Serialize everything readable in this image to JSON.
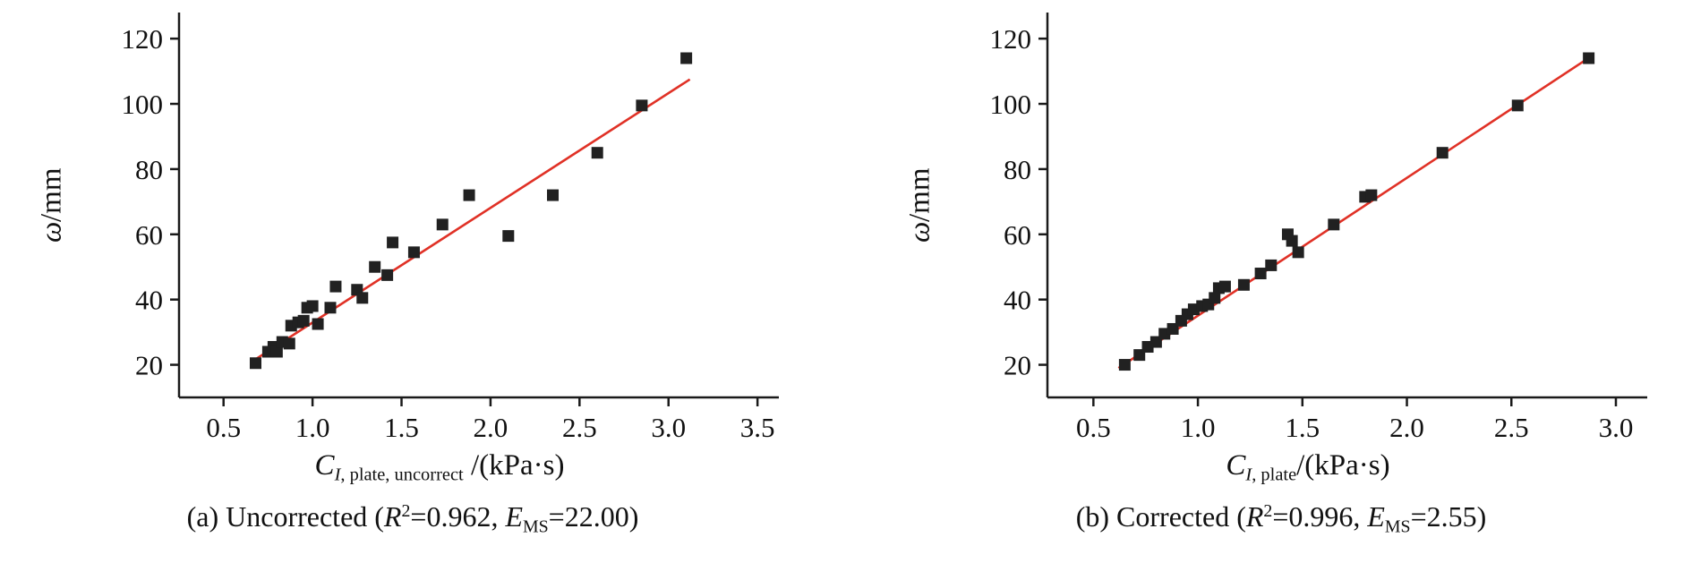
{
  "figure": {
    "background": "#ffffff",
    "marker_color": "#212121",
    "line_color": "#e03126",
    "axis_color": "#1a1a1a"
  },
  "chart_data": [
    {
      "type": "scatter",
      "title": "",
      "caption": "(a) Uncorrected (R2=0.962, EMS=22.00)",
      "caption_segments": [
        {
          "t": "(a) Uncorrected (",
          "s": "n"
        },
        {
          "t": "R",
          "s": "i"
        },
        {
          "t": "2",
          "s": "sup"
        },
        {
          "t": "=0.962, ",
          "s": "n"
        },
        {
          "t": "E",
          "s": "i"
        },
        {
          "t": "MS",
          "s": "sub"
        },
        {
          "t": "=22.00)",
          "s": "n"
        }
      ],
      "xlabel": "C I, plate, uncorrect /(kPa·s)",
      "xlabel_segments": [
        {
          "t": "C",
          "s": "i"
        },
        {
          "t": "I",
          "s": "subi"
        },
        {
          "t": ", plate, uncorrect",
          "s": "sub"
        },
        {
          "t": " /(kPa·s)",
          "s": "n"
        }
      ],
      "ylabel": "ω/mm",
      "ylabel_segments": [
        {
          "t": "ω",
          "s": "i"
        },
        {
          "t": "/mm",
          "s": "n"
        }
      ],
      "xlim": [
        0.25,
        3.62
      ],
      "ylim": [
        10,
        128
      ],
      "xticks": [
        0.5,
        1.0,
        1.5,
        2.0,
        2.5,
        3.0,
        3.5
      ],
      "xtick_labels": [
        "0.5",
        "1.0",
        "1.5",
        "2.0",
        "2.5",
        "3.0",
        "3.5"
      ],
      "yticks": [
        20,
        40,
        60,
        80,
        100,
        120
      ],
      "ytick_labels": [
        "20",
        "40",
        "60",
        "80",
        "100",
        "120"
      ],
      "grid": false,
      "legend": "none",
      "marker": "square",
      "stats": {
        "R2": "0.962",
        "EMS": "22.00"
      },
      "fit_line": {
        "x": [
          0.66,
          3.12
        ],
        "y": [
          21,
          107.5
        ]
      },
      "points": [
        [
          0.68,
          20.5
        ],
        [
          0.75,
          24
        ],
        [
          0.78,
          25.5
        ],
        [
          0.8,
          24
        ],
        [
          0.83,
          27
        ],
        [
          0.87,
          26.5
        ],
        [
          0.88,
          32
        ],
        [
          0.92,
          33
        ],
        [
          0.95,
          33.5
        ],
        [
          0.97,
          37.5
        ],
        [
          1.0,
          38
        ],
        [
          1.03,
          32.5
        ],
        [
          1.1,
          37.5
        ],
        [
          1.13,
          44
        ],
        [
          1.25,
          43
        ],
        [
          1.28,
          40.5
        ],
        [
          1.35,
          50
        ],
        [
          1.42,
          47.5
        ],
        [
          1.45,
          57.5
        ],
        [
          1.57,
          54.5
        ],
        [
          1.73,
          63
        ],
        [
          1.88,
          72
        ],
        [
          2.1,
          59.5
        ],
        [
          2.35,
          72
        ],
        [
          2.6,
          85
        ],
        [
          2.85,
          99.5
        ],
        [
          3.1,
          114
        ]
      ]
    },
    {
      "type": "scatter",
      "title": "",
      "caption": "(b) Corrected (R2=0.996, EMS=2.55)",
      "caption_segments": [
        {
          "t": "(b) Corrected (",
          "s": "n"
        },
        {
          "t": "R",
          "s": "i"
        },
        {
          "t": "2",
          "s": "sup"
        },
        {
          "t": "=0.996, ",
          "s": "n"
        },
        {
          "t": "E",
          "s": "i"
        },
        {
          "t": "MS",
          "s": "sub"
        },
        {
          "t": "=2.55)",
          "s": "n"
        }
      ],
      "xlabel": "C I, plate /(kPa·s)",
      "xlabel_segments": [
        {
          "t": "C",
          "s": "i"
        },
        {
          "t": "I",
          "s": "subi"
        },
        {
          "t": ", plate",
          "s": "sub"
        },
        {
          "t": "/(kPa·s)",
          "s": "n"
        }
      ],
      "ylabel": "ω/mm",
      "ylabel_segments": [
        {
          "t": "ω",
          "s": "i"
        },
        {
          "t": "/mm",
          "s": "n"
        }
      ],
      "xlim": [
        0.28,
        3.15
      ],
      "ylim": [
        10,
        128
      ],
      "xticks": [
        0.5,
        1.0,
        1.5,
        2.0,
        2.5,
        3.0
      ],
      "xtick_labels": [
        "0.5",
        "1.0",
        "1.5",
        "2.0",
        "2.5",
        "3.0"
      ],
      "yticks": [
        20,
        40,
        60,
        80,
        100,
        120
      ],
      "ytick_labels": [
        "20",
        "40",
        "60",
        "80",
        "100",
        "120"
      ],
      "grid": false,
      "legend": "none",
      "marker": "square",
      "stats": {
        "R2": "0.996",
        "EMS": "2.55"
      },
      "fit_line": {
        "x": [
          0.62,
          2.88
        ],
        "y": [
          19,
          114.5
        ]
      },
      "points": [
        [
          0.65,
          20
        ],
        [
          0.72,
          23
        ],
        [
          0.76,
          25.5
        ],
        [
          0.8,
          27
        ],
        [
          0.84,
          29.5
        ],
        [
          0.88,
          31
        ],
        [
          0.92,
          33.5
        ],
        [
          0.95,
          35.5
        ],
        [
          0.98,
          37
        ],
        [
          1.02,
          38
        ],
        [
          1.05,
          38.5
        ],
        [
          1.08,
          40.5
        ],
        [
          1.1,
          43.5
        ],
        [
          1.13,
          44
        ],
        [
          1.22,
          44.5
        ],
        [
          1.3,
          48
        ],
        [
          1.35,
          50.5
        ],
        [
          1.43,
          60
        ],
        [
          1.45,
          58
        ],
        [
          1.48,
          54.5
        ],
        [
          1.65,
          63
        ],
        [
          1.8,
          71.5
        ],
        [
          1.83,
          72
        ],
        [
          2.17,
          85
        ],
        [
          2.53,
          99.5
        ],
        [
          2.87,
          114
        ]
      ]
    }
  ]
}
